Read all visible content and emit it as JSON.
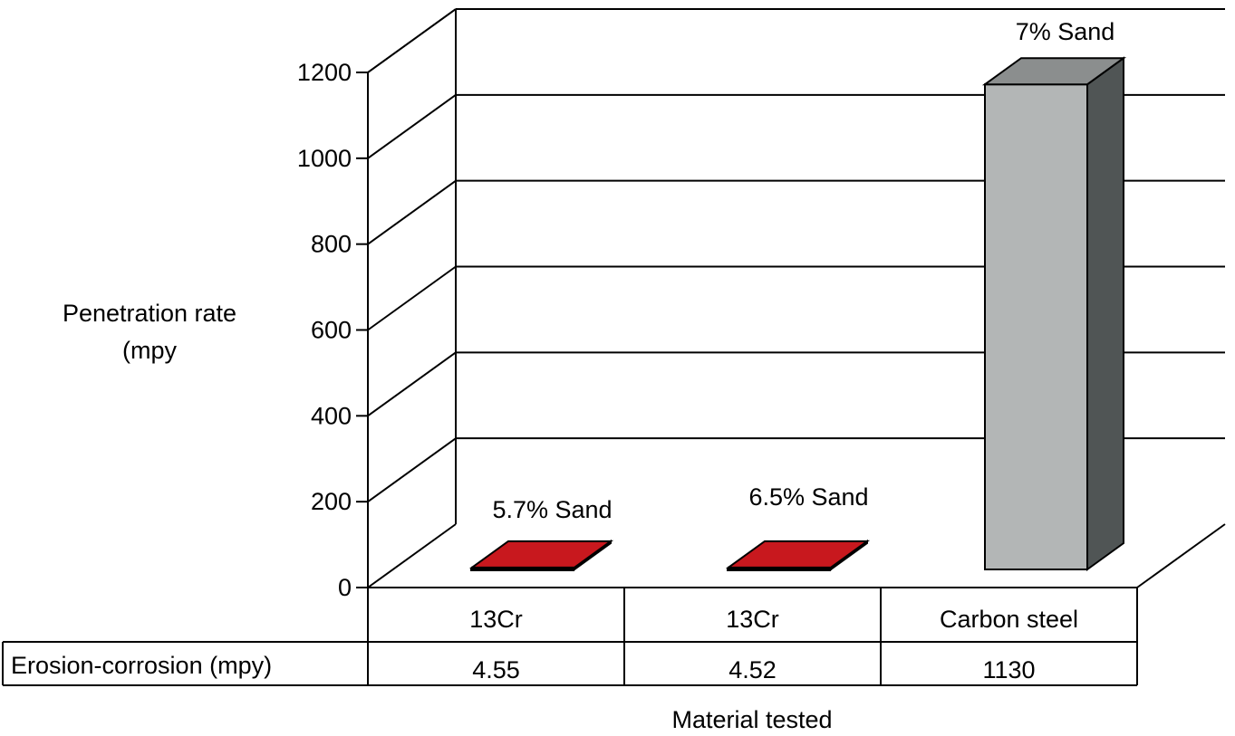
{
  "chart_data": {
    "type": "bar",
    "ylabel_lines": [
      "Penetration rate",
      "(mpy"
    ],
    "xlabel": "Material tested",
    "ylim": [
      0,
      1200
    ],
    "yticks": [
      "0",
      "200",
      "400",
      "600",
      "800",
      "1000",
      "1200"
    ],
    "grid": true,
    "categories": [
      "13Cr",
      "13Cr",
      "Carbon steel"
    ],
    "bar_labels": [
      "5.7% Sand",
      "6.5% Sand",
      "7% Sand"
    ],
    "series": [
      {
        "name": "Erosion-corrosion (mpy)",
        "values": [
          4.55,
          4.52,
          1130
        ],
        "display_values": [
          "4.55",
          "4.52",
          "1130"
        ]
      }
    ],
    "colors": {
      "bar_highlight": "#c8181e",
      "bar_highlight_side": "#8a1014",
      "bar_front": "#b3b6b6",
      "bar_top": "#8b8e8e",
      "bar_side": "#505555"
    }
  }
}
